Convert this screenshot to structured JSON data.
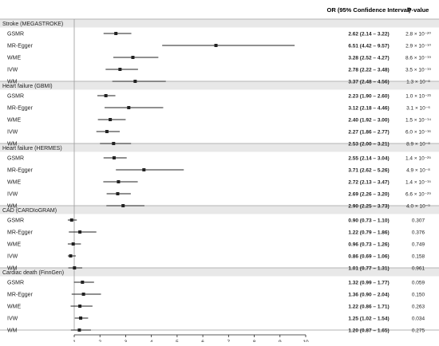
{
  "headers": {
    "or_ci": "OR (95% Confidence Interval)",
    "pvalue": "P-value"
  },
  "colors": {
    "band": "#e8e8e8",
    "line": "#222222",
    "grid": "#9a9a9a",
    "text": "#222222"
  },
  "chart_data": {
    "type": "forest",
    "reference_line": 1,
    "xlim": [
      1,
      10
    ],
    "x_ticks": [
      "1",
      "2",
      "3",
      "4",
      "5",
      "6",
      "7",
      "8",
      "9",
      "10"
    ],
    "groups": [
      {
        "title": "Stroke (MEGASTROKE)",
        "rows": [
          {
            "method": "GSMR",
            "or": 2.62,
            "lo": 2.14,
            "hi": 3.22,
            "ci_text": "2.62 (2.14 – 3.22)",
            "p_text": "2.8 × 10⁻²⁰"
          },
          {
            "method": "MR-Egger",
            "or": 6.51,
            "lo": 4.42,
            "hi": 9.57,
            "ci_text": "6.51 (4.42 – 9.57)",
            "p_text": "2.9 × 10⁻¹⁰"
          },
          {
            "method": "WME",
            "or": 3.28,
            "lo": 2.52,
            "hi": 4.27,
            "ci_text": "3.28 (2.52 – 4.27)",
            "p_text": "8.6 × 10⁻¹⁹"
          },
          {
            "method": "IVW",
            "or": 2.78,
            "lo": 2.22,
            "hi": 3.48,
            "ci_text": "2.78 (2.22 – 3.48)",
            "p_text": "3.5 × 10⁻¹⁹"
          },
          {
            "method": "WM",
            "or": 3.37,
            "lo": 2.48,
            "hi": 4.56,
            "ci_text": "3.37 (2.48 – 4.56)",
            "p_text": "1.3 × 10⁻⁸"
          }
        ]
      },
      {
        "title": "Heart failure (GBMI)",
        "rows": [
          {
            "method": "GSMR",
            "or": 2.23,
            "lo": 1.9,
            "hi": 2.6,
            "ci_text": "2.23 (1.90 – 2.60)",
            "p_text": "1.0 × 10⁻²³"
          },
          {
            "method": "MR-Egger",
            "or": 3.12,
            "lo": 2.18,
            "hi": 4.46,
            "ci_text": "3.12 (2.18 – 4.46)",
            "p_text": "3.1 × 10⁻⁶"
          },
          {
            "method": "WME",
            "or": 2.4,
            "lo": 1.92,
            "hi": 3.0,
            "ci_text": "2.40 (1.92 – 3.00)",
            "p_text": "1.5 × 10⁻¹⁴"
          },
          {
            "method": "IVW",
            "or": 2.27,
            "lo": 1.86,
            "hi": 2.77,
            "ci_text": "2.27 (1.86 – 2.77)",
            "p_text": "6.0 × 10⁻¹⁶"
          },
          {
            "method": "WM",
            "or": 2.53,
            "lo": 2.0,
            "hi": 3.21,
            "ci_text": "2.53 (2.00 – 3.21)",
            "p_text": "8.9 × 10⁻⁸"
          }
        ]
      },
      {
        "title": "Heart failure (HERMES)",
        "rows": [
          {
            "method": "GSMR",
            "or": 2.55,
            "lo": 2.14,
            "hi": 3.04,
            "ci_text": "2.55 (2.14 – 3.04)",
            "p_text": "1.4 × 10⁻²⁵"
          },
          {
            "method": "MR-Egger",
            "or": 3.71,
            "lo": 2.62,
            "hi": 5.26,
            "ci_text": "3.71 (2.62 – 5.26)",
            "p_text": "4.9 × 10⁻⁸"
          },
          {
            "method": "WME",
            "or": 2.72,
            "lo": 2.13,
            "hi": 3.47,
            "ci_text": "2.72 (2.13 – 3.47)",
            "p_text": "1.4 × 10⁻¹⁵"
          },
          {
            "method": "IVW",
            "or": 2.69,
            "lo": 2.26,
            "hi": 3.2,
            "ci_text": "2.69 (2.26 – 3.20)",
            "p_text": "6.6 × 10⁻²⁹"
          },
          {
            "method": "WM",
            "or": 2.9,
            "lo": 2.25,
            "hi": 3.73,
            "ci_text": "2.90 (2.25 – 3.73)",
            "p_text": "4.0 × 10⁻⁹"
          }
        ]
      },
      {
        "title": "CAD (CARDIoGRAM)",
        "rows": [
          {
            "method": "GSMR",
            "or": 0.9,
            "lo": 0.73,
            "hi": 1.1,
            "ci_text": "0.90 (0.73 – 1.10)",
            "p_text": "0.307"
          },
          {
            "method": "MR-Egger",
            "or": 1.22,
            "lo": 0.79,
            "hi": 1.86,
            "ci_text": "1.22 (0.79 – 1.86)",
            "p_text": "0.376"
          },
          {
            "method": "WME",
            "or": 0.96,
            "lo": 0.73,
            "hi": 1.26,
            "ci_text": "0.96 (0.73 – 1.26)",
            "p_text": "0.749"
          },
          {
            "method": "IVW",
            "or": 0.86,
            "lo": 0.69,
            "hi": 1.06,
            "ci_text": "0.86 (0.69 – 1.06)",
            "p_text": "0.158"
          },
          {
            "method": "WM",
            "or": 1.01,
            "lo": 0.77,
            "hi": 1.31,
            "ci_text": "1.01 (0.77 – 1.31)",
            "p_text": "0.961"
          }
        ]
      },
      {
        "title": "Cardiac death (FinnGen)",
        "rows": [
          {
            "method": "GSMR",
            "or": 1.32,
            "lo": 0.99,
            "hi": 1.77,
            "ci_text": "1.32 (0.99 – 1.77)",
            "p_text": "0.059"
          },
          {
            "method": "MR-Egger",
            "or": 1.36,
            "lo": 0.9,
            "hi": 2.04,
            "ci_text": "1.36 (0.90 – 2.04)",
            "p_text": "0.150"
          },
          {
            "method": "WME",
            "or": 1.22,
            "lo": 0.86,
            "hi": 1.71,
            "ci_text": "1.22 (0.86 – 1.71)",
            "p_text": "0.263"
          },
          {
            "method": "IVW",
            "or": 1.25,
            "lo": 1.02,
            "hi": 1.54,
            "ci_text": "1.25 (1.02 – 1.54)",
            "p_text": "0.034"
          },
          {
            "method": "WM",
            "or": 1.2,
            "lo": 0.87,
            "hi": 1.65,
            "ci_text": "1.20 (0.87 – 1.65)",
            "p_text": "0.275"
          }
        ]
      }
    ]
  }
}
